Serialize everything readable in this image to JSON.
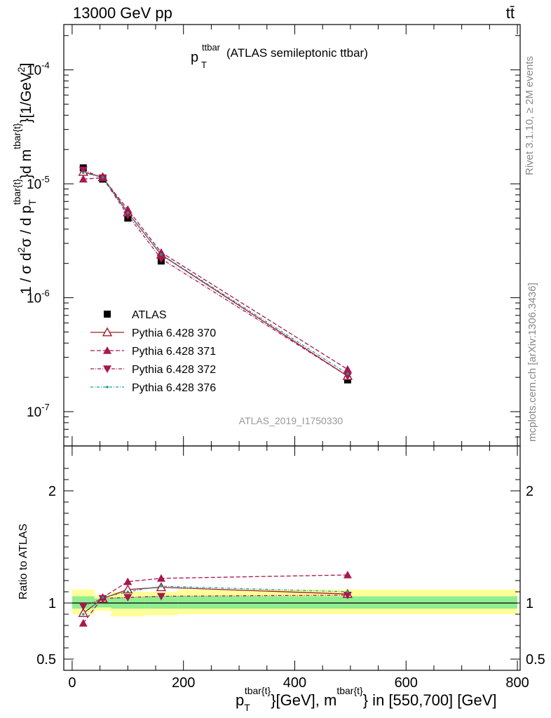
{
  "header": {
    "energy_label": "13000 GeV pp",
    "process_label": "tt̄"
  },
  "plot_title": {
    "main": "p",
    "sub": "T",
    "sup": "ttbar",
    "rest": " (ATLAS semileptonic ttbar)"
  },
  "side_labels": {
    "rivet": "Rivet 3.1.10, ≥ 2M events",
    "mcplots": "mcplots.cern.ch [arXiv:1306.3436]"
  },
  "analysis_id": "ATLAS_2019_I1750330",
  "chart_data": [
    {
      "type": "line",
      "panel": "main",
      "yscale": "log",
      "ylim": [
        5e-08,
        0.00025
      ],
      "xlim": [
        -15,
        805
      ],
      "y_ticks": [
        {
          "exp": "-7",
          "value": 1e-07
        },
        {
          "exp": "-6",
          "value": 1e-06
        },
        {
          "exp": "-5",
          "value": 1e-05
        },
        {
          "exp": "-4",
          "value": 0.0001
        }
      ],
      "ylabel": "1 / σ d²σ / d p_T^tbar{t}d m^tbar{t}[1/GeV²]",
      "ylabel_parts": {
        "pre": "1 / σ d",
        "sup2": "2",
        "mid": "σ /  d p",
        "subT": "T",
        "supT": "tbar{t}",
        "post1": "}d m",
        "supm": "tbar{t}",
        "post2": "}[1/GeV",
        "sup3": "2",
        "post3": "]"
      },
      "data": {
        "name": "ATLAS",
        "x": [
          20,
          55,
          100,
          160,
          495
        ],
        "y": [
          1.38e-05,
          1.1e-05,
          5e-06,
          2.1e-06,
          1.9e-07
        ],
        "xerr_low": [
          0,
          0,
          0,
          0,
          0
        ]
      },
      "series": [
        {
          "name": "Pythia 6.428 370",
          "color": "#9a1f2e",
          "dash": "",
          "marker": "triangle-up-open",
          "x": [
            20,
            55,
            100,
            160,
            495
          ],
          "y": [
            1.27e-05,
            1.14e-05,
            5.6e-06,
            2.38e-06,
            2.05e-07
          ]
        },
        {
          "name": "Pythia 6.428 371",
          "color": "#a8174f",
          "dash": "6,3",
          "marker": "triangle-up",
          "x": [
            20,
            55,
            100,
            160,
            495
          ],
          "y": [
            1.1e-05,
            1.13e-05,
            5.95e-06,
            2.5e-06,
            2.35e-07
          ]
        },
        {
          "name": "Pythia 6.428 372",
          "color": "#a8174f",
          "dash": "5,2,1,2",
          "marker": "triangle-down",
          "x": [
            20,
            55,
            100,
            160,
            495
          ],
          "y": [
            1.32e-05,
            1.13e-05,
            5.3e-06,
            2.2e-06,
            2.05e-07
          ]
        },
        {
          "name": "Pythia 6.428 376",
          "color": "#1a9c9c",
          "dash": "4,2,1,2",
          "marker": "dot",
          "x": [
            20,
            55,
            100,
            160,
            495
          ],
          "y": [
            1.25e-05,
            1.14e-05,
            5.55e-06,
            2.4e-06,
            2.15e-07
          ]
        }
      ]
    },
    {
      "type": "line",
      "panel": "ratio",
      "ylabel": "Ratio to ATLAS",
      "ylim": [
        0.4,
        2.4
      ],
      "y_ticks": [
        {
          "label": "0.5",
          "value": 0.5
        },
        {
          "label": "1",
          "value": 1
        },
        {
          "label": "2",
          "value": 2
        }
      ],
      "x_ticks": [
        {
          "label": "0",
          "value": 0
        },
        {
          "label": "200",
          "value": 200
        },
        {
          "label": "400",
          "value": 400
        },
        {
          "label": "600",
          "value": 600
        },
        {
          "label": "800",
          "value": 800
        }
      ],
      "xlabel_parts": {
        "pre": "p",
        "subT": "T",
        "supT": "tbar{t}",
        "mid": "}[GeV], m",
        "supm": "tbar{t}",
        "post": "} in [550,700] [GeV]"
      },
      "bands": [
        {
          "x0": 0,
          "x1": 40,
          "yellow": [
            0.9,
            1.12
          ],
          "green": [
            0.95,
            1.06
          ]
        },
        {
          "x0": 40,
          "x1": 70,
          "yellow": [
            0.93,
            1.07
          ],
          "green": [
            0.96,
            1.04
          ]
        },
        {
          "x0": 70,
          "x1": 130,
          "yellow": [
            0.88,
            1.1
          ],
          "green": [
            0.95,
            1.05
          ]
        },
        {
          "x0": 130,
          "x1": 190,
          "yellow": [
            0.89,
            1.1
          ],
          "green": [
            0.95,
            1.06
          ]
        },
        {
          "x0": 190,
          "x1": 800,
          "yellow": [
            0.9,
            1.12
          ],
          "green": [
            0.95,
            1.06
          ]
        }
      ],
      "series": [
        {
          "name": "Pythia 6.428 370",
          "x": [
            20,
            55,
            100,
            160,
            495
          ],
          "y": [
            0.91,
            1.04,
            1.12,
            1.14,
            1.08
          ]
        },
        {
          "name": "Pythia 6.428 371",
          "x": [
            20,
            55,
            100,
            160,
            495
          ],
          "y": [
            0.82,
            1.05,
            1.19,
            1.22,
            1.25
          ]
        },
        {
          "name": "Pythia 6.428 372",
          "x": [
            20,
            55,
            100,
            160,
            495
          ],
          "y": [
            0.97,
            1.04,
            1.05,
            1.06,
            1.07
          ]
        },
        {
          "name": "Pythia 6.428 376",
          "x": [
            20,
            55,
            100,
            160,
            495
          ],
          "y": [
            0.9,
            1.05,
            1.1,
            1.15,
            1.1
          ]
        }
      ]
    }
  ]
}
